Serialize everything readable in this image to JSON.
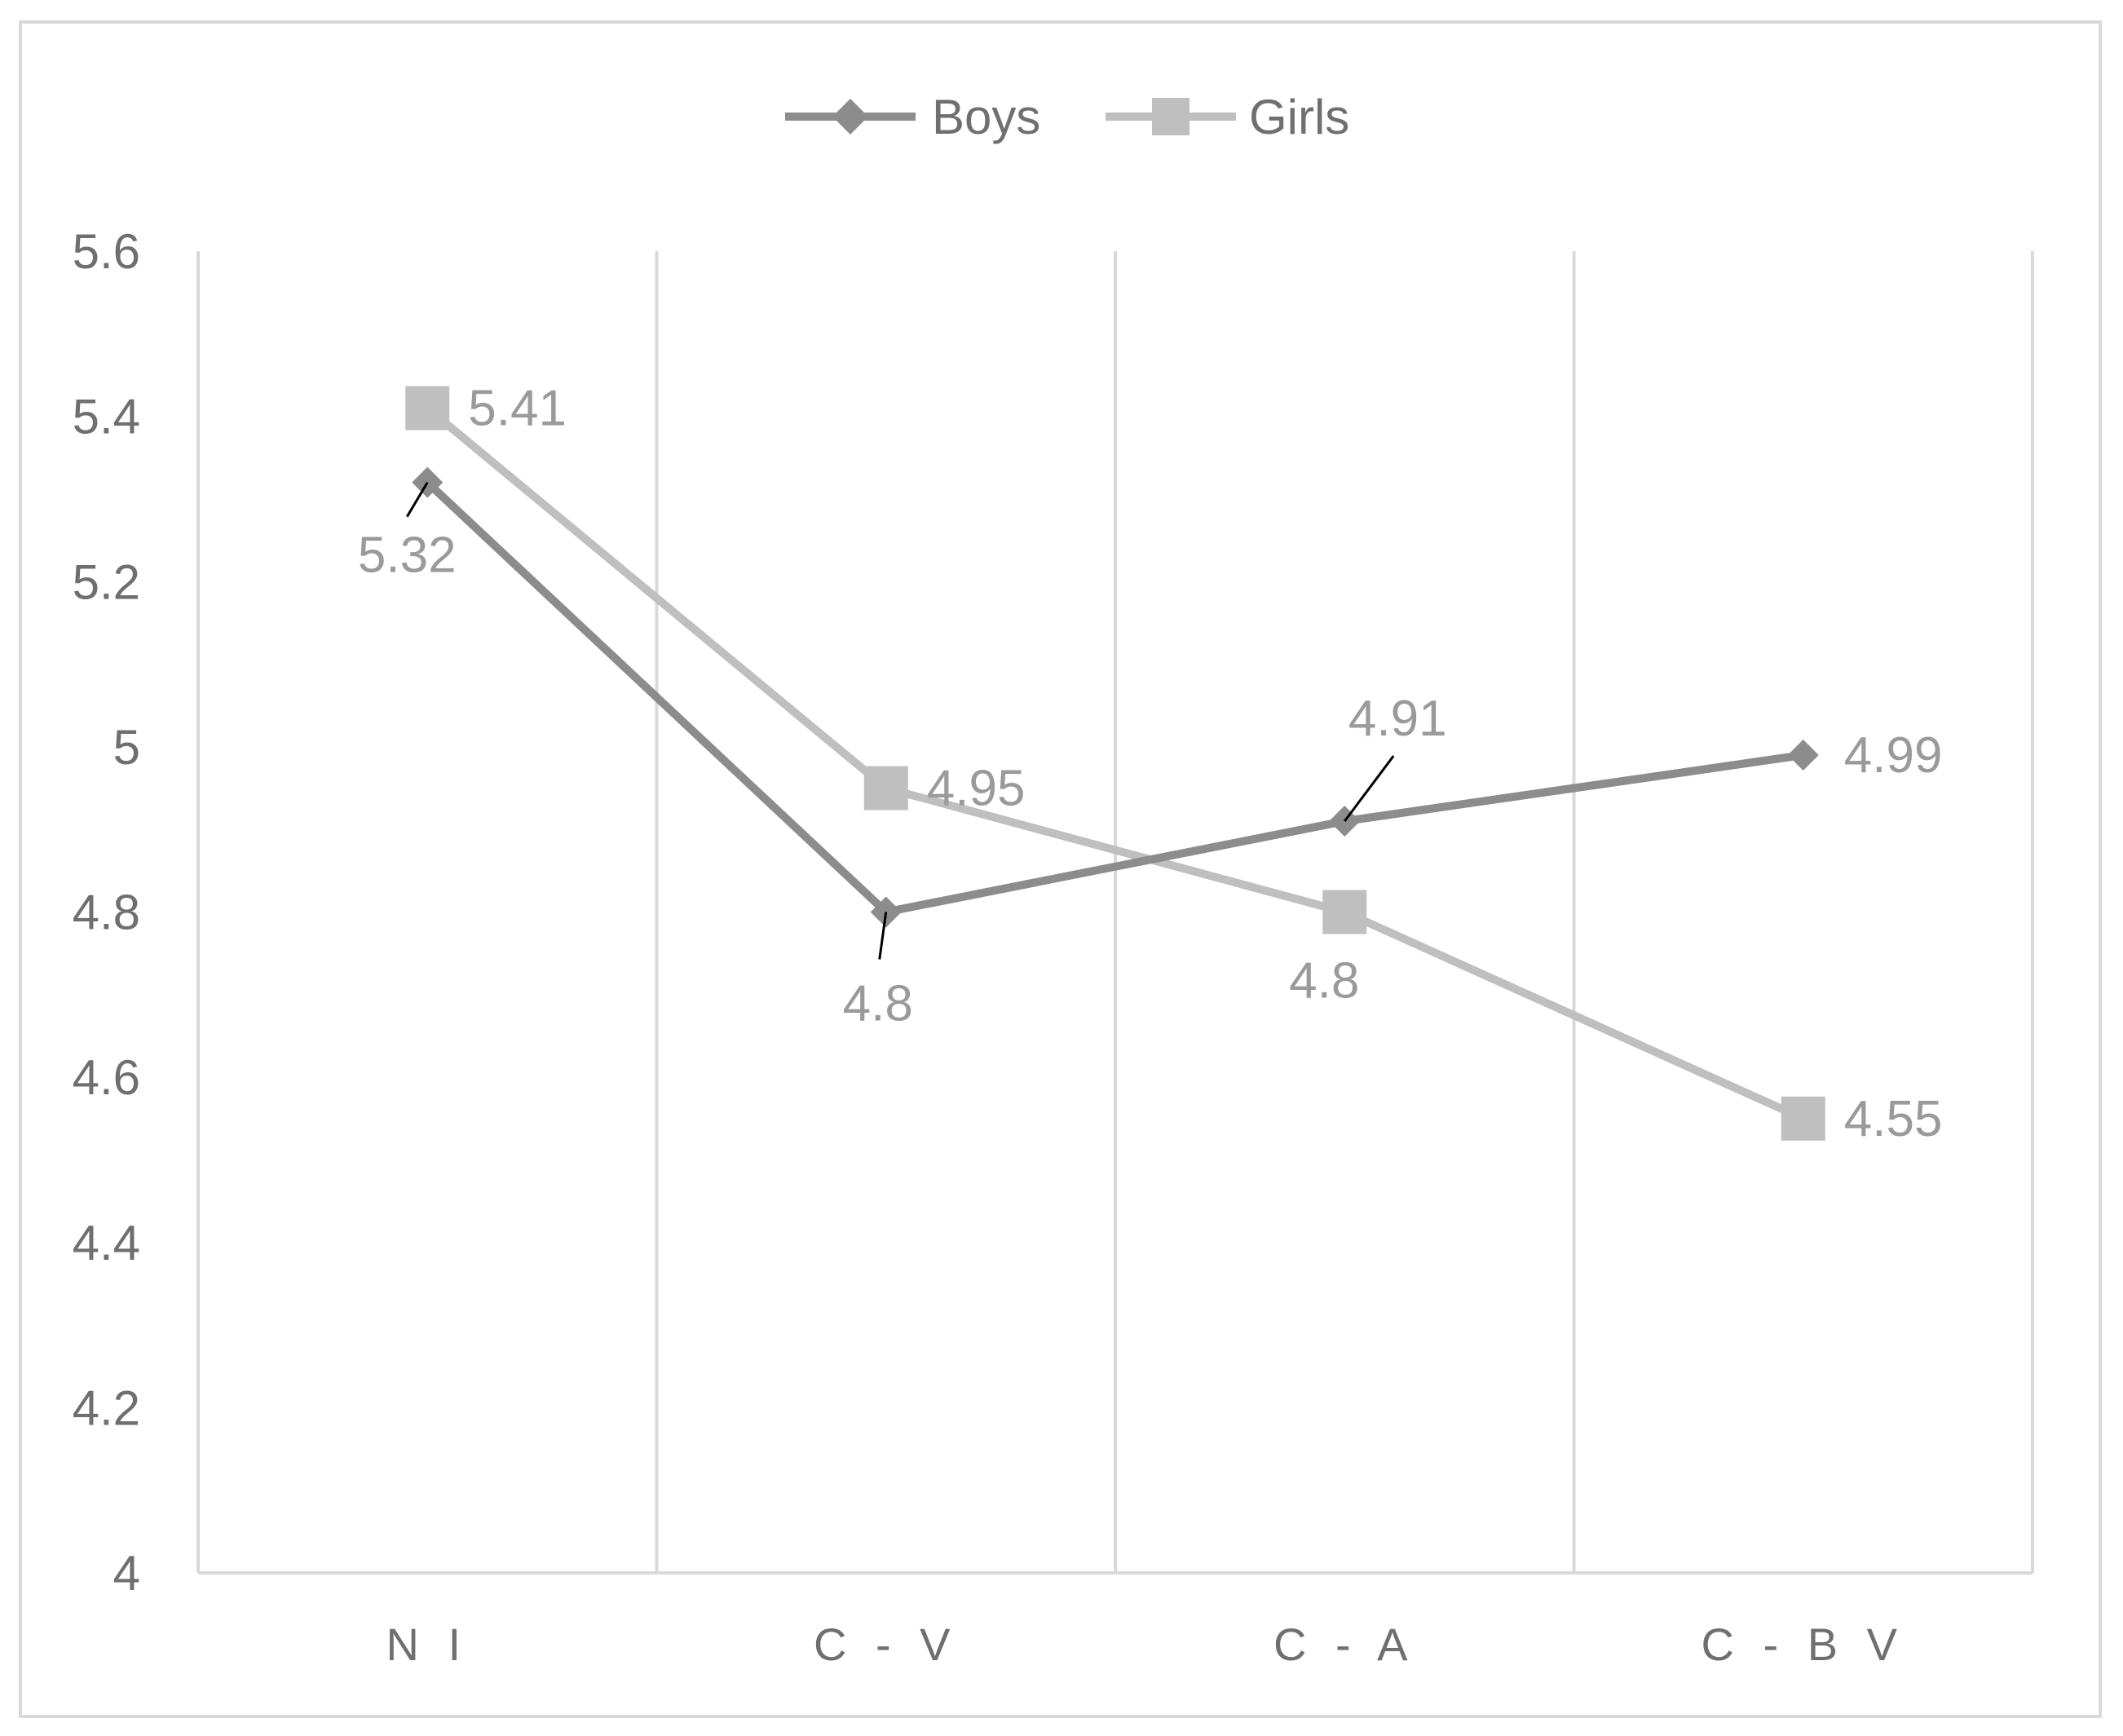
{
  "chart_data": {
    "type": "line",
    "categories": [
      "N I",
      "C - V",
      "C - A",
      "C - B V"
    ],
    "series": [
      {
        "name": "Boys",
        "values": [
          5.32,
          4.8,
          4.91,
          4.99
        ],
        "labels": [
          "5.32",
          "4.8",
          "4.91",
          "4.99"
        ],
        "color": "#8c8c8c",
        "label_color": "#9a9a9a",
        "marker": "diamond"
      },
      {
        "name": "Girls",
        "values": [
          5.41,
          4.95,
          4.8,
          4.55
        ],
        "labels": [
          "5.41",
          "4.95",
          "4.8",
          "4.55"
        ],
        "color": "#bfbfbf",
        "label_color": "#9a9a9a",
        "marker": "square"
      }
    ],
    "y_ticks": [
      "4",
      "4.2",
      "4.4",
      "4.6",
      "4.8",
      "5",
      "5.2",
      "5.4",
      "5.6"
    ],
    "ylim": [
      4,
      5.6
    ],
    "grid": "vertical",
    "legend": "top-center",
    "gridline_color": "#d9d9d9"
  }
}
